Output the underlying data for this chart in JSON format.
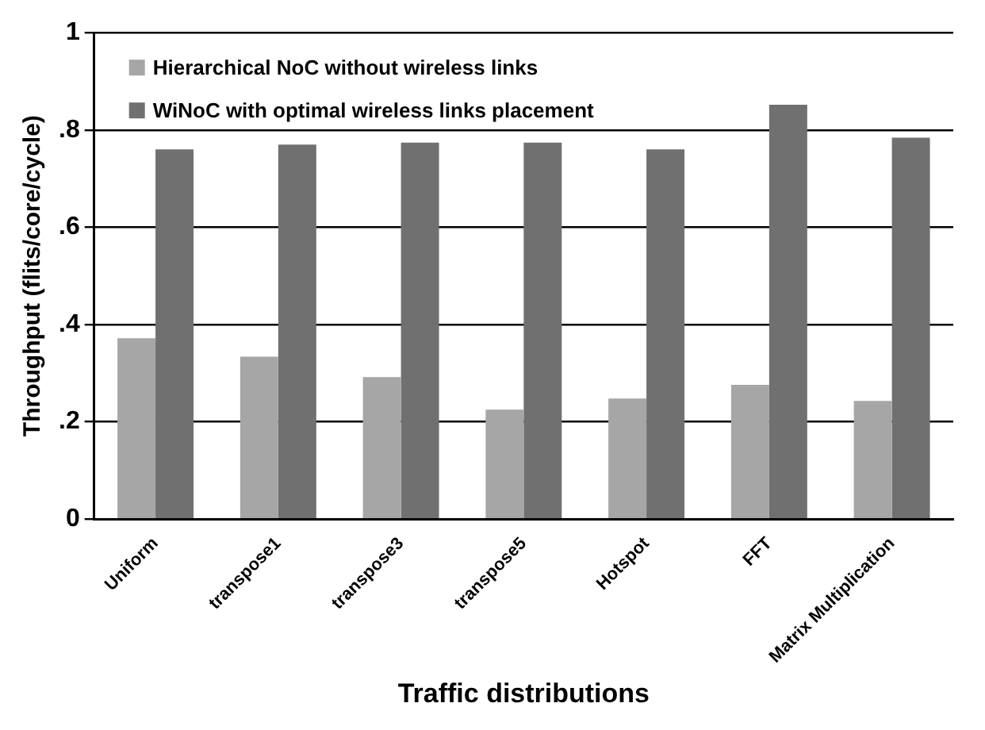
{
  "chart_data": {
    "type": "bar",
    "xlabel": "Traffic distributions",
    "ylabel": "Throughput (flits/core/cycle)",
    "categories": [
      "Uniform",
      "transpose1",
      "transpose3",
      "transpose5",
      "Hotspot",
      "FFT",
      "Matrix Multiplication"
    ],
    "series": [
      {
        "name": "Hierarchical NoC without wireless links",
        "color": "#a6a6a6",
        "values": [
          0.372,
          0.334,
          0.292,
          0.225,
          0.248,
          0.276,
          0.243
        ]
      },
      {
        "name": "WiNoC with optimal wireless links placement",
        "color": "#707070",
        "values": [
          0.76,
          0.77,
          0.774,
          0.774,
          0.76,
          0.852,
          0.784
        ]
      }
    ],
    "ylim": [
      0,
      1
    ],
    "yticks": [
      0,
      {
        "value": 0.2,
        "label": ".2"
      },
      {
        "value": 0.4,
        "label": ".4"
      },
      {
        "value": 0.6,
        "label": ".6"
      },
      {
        "value": 0.8,
        "label": ".8"
      },
      1
    ],
    "grid": "y",
    "legend": "top left"
  }
}
